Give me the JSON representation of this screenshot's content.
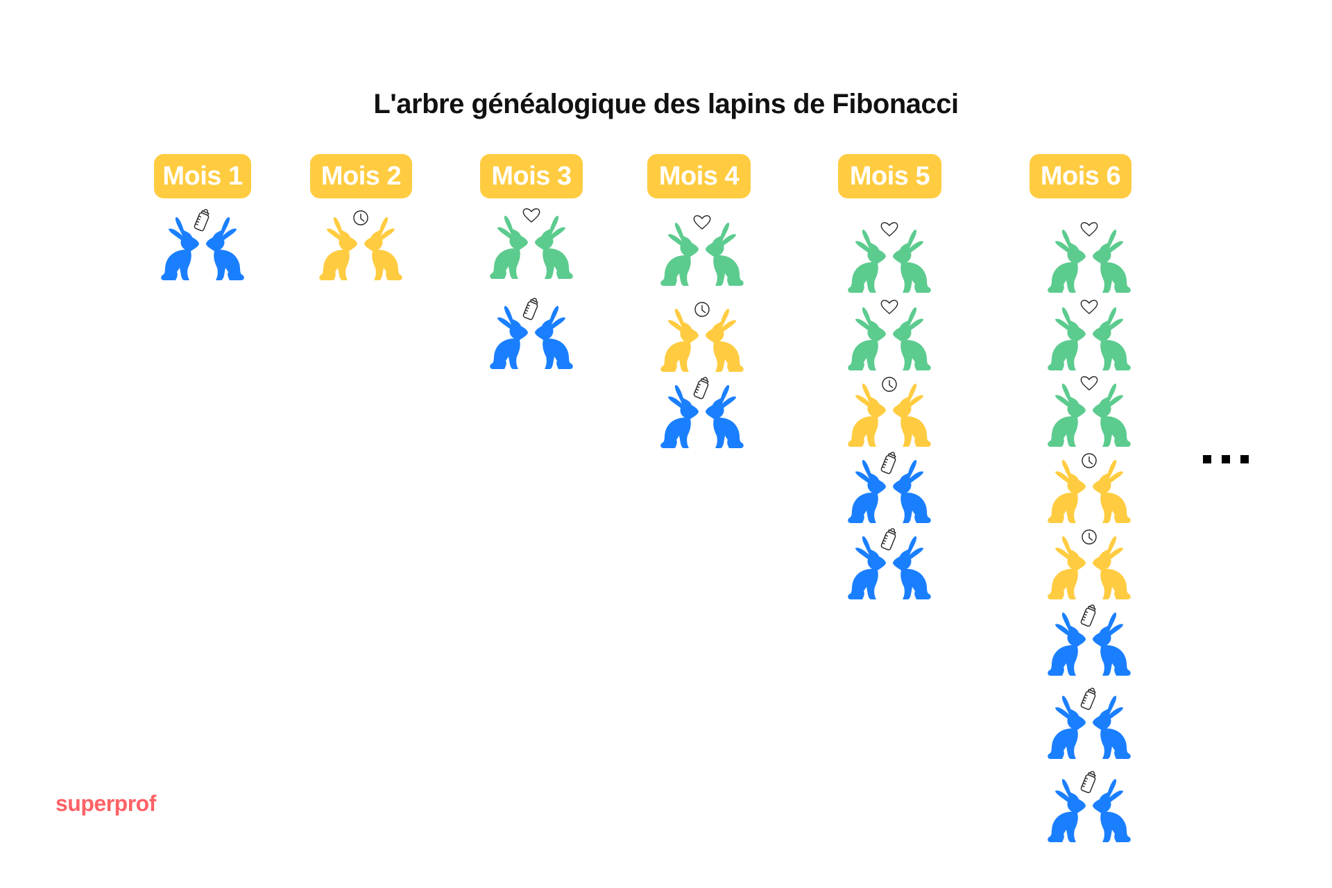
{
  "title": "L'arbre généalogique des lapins de Fibonacci",
  "colors": {
    "badge": "#FFCC41",
    "newborn": "#1A7FFF",
    "young": "#FFCC41",
    "adult": "#5CCB8E",
    "logo": "#FF6266"
  },
  "legend_meaning": {
    "newborn": "bottle-icon",
    "young": "clock-icon",
    "adult": "heart-icon"
  },
  "months": [
    {
      "label": "Mois 1",
      "pairs": [
        "newborn"
      ]
    },
    {
      "label": "Mois 2",
      "pairs": [
        "young"
      ]
    },
    {
      "label": "Mois 3",
      "pairs": [
        "adult",
        "newborn"
      ]
    },
    {
      "label": "Mois 4",
      "pairs": [
        "adult",
        "young",
        "newborn"
      ]
    },
    {
      "label": "Mois 5",
      "pairs": [
        "adult",
        "adult",
        "young",
        "newborn",
        "newborn"
      ]
    },
    {
      "label": "Mois 6",
      "pairs": [
        "adult",
        "adult",
        "adult",
        "young",
        "young",
        "newborn",
        "newborn",
        "newborn"
      ]
    }
  ],
  "continuation": "...",
  "logo": "superprof"
}
